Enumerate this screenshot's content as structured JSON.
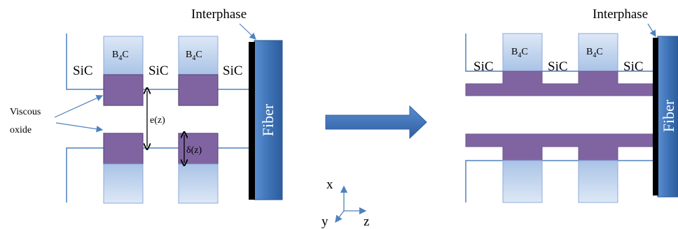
{
  "colors": {
    "background": "#ffffff",
    "matrix_line": "#4f81bd",
    "b4c_fill_top": "#dbe6f5",
    "b4c_fill_bottom": "#aec6e8",
    "b4c_stroke": "#8eaadb",
    "oxide_fill": "#8064a2",
    "oxide_stroke": "#5c4a7a",
    "fiber_fill": "#3f74b8",
    "fiber_edge": "#2a5590",
    "interphase": "#000000",
    "arrow_fill": "#3b6db0",
    "leader_line": "#4f81bd"
  },
  "left_panel": {
    "interphase_label": "Interphase",
    "fiber_label": "Fiber",
    "b4c_labels": [
      {
        "text": "B",
        "sub": "4",
        "tail": "C"
      },
      {
        "text": "B",
        "sub": "4",
        "tail": "C"
      }
    ],
    "sic_labels": [
      "SiC",
      "SiC",
      "SiC"
    ],
    "oxide_label_line1": "Viscous",
    "oxide_label_line2": "oxide",
    "gap_label": "e(z)",
    "delta_label": "δ(z)"
  },
  "right_panel": {
    "interphase_label": "Interphase",
    "fiber_label": "Fiber",
    "b4c_labels": [
      {
        "text": "B",
        "sub": "4",
        "tail": "C"
      },
      {
        "text": "B",
        "sub": "4",
        "tail": "C"
      }
    ],
    "sic_labels": [
      "SiC",
      "SiC",
      "SiC"
    ]
  },
  "axes": {
    "x_label": "x",
    "y_label": "y",
    "z_label": "z"
  }
}
